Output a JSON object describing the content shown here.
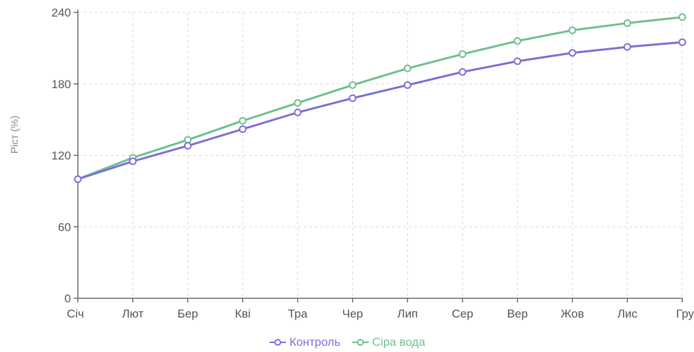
{
  "chart_data": {
    "type": "line",
    "categories": [
      "Січ",
      "Лют",
      "Бер",
      "Кві",
      "Тра",
      "Чер",
      "Лип",
      "Сер",
      "Вер",
      "Жов",
      "Лис",
      "Гру"
    ],
    "series": [
      {
        "name": "Контроль",
        "color": "#7b6fd6",
        "values": [
          100,
          115,
          128,
          142,
          156,
          168,
          179,
          190,
          199,
          206,
          211,
          215
        ]
      },
      {
        "name": "Сіра вода",
        "color": "#6dbf8f",
        "values": [
          100,
          118,
          133,
          149,
          164,
          179,
          193,
          205,
          216,
          225,
          231,
          236
        ]
      }
    ],
    "title": "",
    "xlabel": "",
    "ylabel": "Ріст (%)",
    "ylim": [
      0,
      240
    ],
    "yticks": [
      0,
      60,
      120,
      180,
      240
    ],
    "grid": true,
    "legend_position": "bottom"
  }
}
